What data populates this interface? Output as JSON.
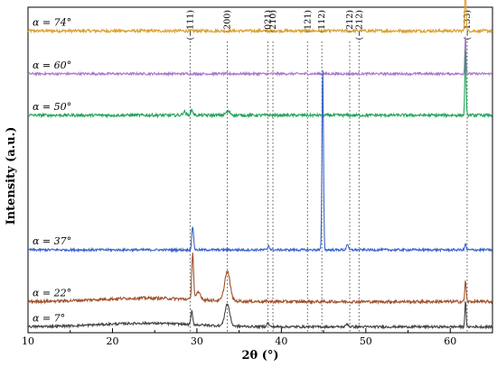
{
  "chart_data": {
    "type": "line",
    "xlabel": "2θ (°)",
    "ylabel": "Intensity (a.u.)",
    "xlim": [
      10,
      65
    ],
    "xticks": [
      10,
      20,
      30,
      40,
      50,
      60
    ],
    "yticks": "none",
    "grid": false,
    "peak_reference_lines": [
      {
        "label": "(−111)",
        "x": 29.2
      },
      {
        "label": "(200)",
        "x": 33.6
      },
      {
        "label": "(021)",
        "x": 38.4
      },
      {
        "label": "(210)",
        "x": 39.0
      },
      {
        "label": "(121)",
        "x": 43.1
      },
      {
        "label": "(112)",
        "x": 44.8
      },
      {
        "label": "(212)",
        "x": 48.1
      },
      {
        "label": "(−212)",
        "x": 49.2
      },
      {
        "label": "(−133)",
        "x": 62.0
      }
    ],
    "series": [
      {
        "name": "α = 74°",
        "color": "#d9a030",
        "baseline": 10.2,
        "noise": 0.05,
        "peaks": [
          {
            "x": 61.8,
            "height": 1.8,
            "width": 0.1
          }
        ]
      },
      {
        "name": "α = 60°",
        "color": "#a874cc",
        "baseline": 8.75,
        "noise": 0.04,
        "peaks": [
          {
            "x": 61.8,
            "height": 1.3,
            "width": 0.1
          }
        ]
      },
      {
        "name": "α = 50°",
        "color": "#22a45a",
        "baseline": 7.35,
        "noise": 0.05,
        "peaks": [
          {
            "x": 28.5,
            "height": 0.12,
            "width": 0.25
          },
          {
            "x": 29.4,
            "height": 0.18,
            "width": 0.2
          },
          {
            "x": 33.7,
            "height": 0.12,
            "width": 0.4
          },
          {
            "x": 61.8,
            "height": 2.3,
            "width": 0.1
          }
        ]
      },
      {
        "name": "α = 37°",
        "color": "#3a64c8",
        "baseline": 2.8,
        "noise": 0.04,
        "peaks": [
          {
            "x": 29.5,
            "height": 0.8,
            "width": 0.15
          },
          {
            "x": 38.5,
            "height": 0.15,
            "width": 0.15
          },
          {
            "x": 44.9,
            "height": 6.2,
            "width": 0.12
          },
          {
            "x": 47.8,
            "height": 0.2,
            "width": 0.15
          },
          {
            "x": 61.8,
            "height": 0.2,
            "width": 0.12
          }
        ]
      },
      {
        "name": "α = 22°",
        "color": "#a0522d",
        "baseline": 1.05,
        "noise": 0.05,
        "peaks": [
          {
            "x": 29.5,
            "height": 1.6,
            "width": 0.15
          },
          {
            "x": 30.2,
            "height": 0.25,
            "width": 0.35
          },
          {
            "x": 33.6,
            "height": 1.0,
            "width": 0.45
          },
          {
            "x": 61.8,
            "height": 0.7,
            "width": 0.12
          }
        ]
      },
      {
        "name": "α = 7°",
        "color": "#444444",
        "baseline": 0.2,
        "noise": 0.04,
        "peaks": [
          {
            "x": 29.4,
            "height": 0.45,
            "width": 0.15
          },
          {
            "x": 33.6,
            "height": 0.75,
            "width": 0.4
          },
          {
            "x": 38.4,
            "height": 0.12,
            "width": 0.2
          },
          {
            "x": 47.8,
            "height": 0.1,
            "width": 0.2
          },
          {
            "x": 61.8,
            "height": 0.9,
            "width": 0.1
          }
        ]
      }
    ],
    "ylim": [
      0,
      11
    ]
  }
}
